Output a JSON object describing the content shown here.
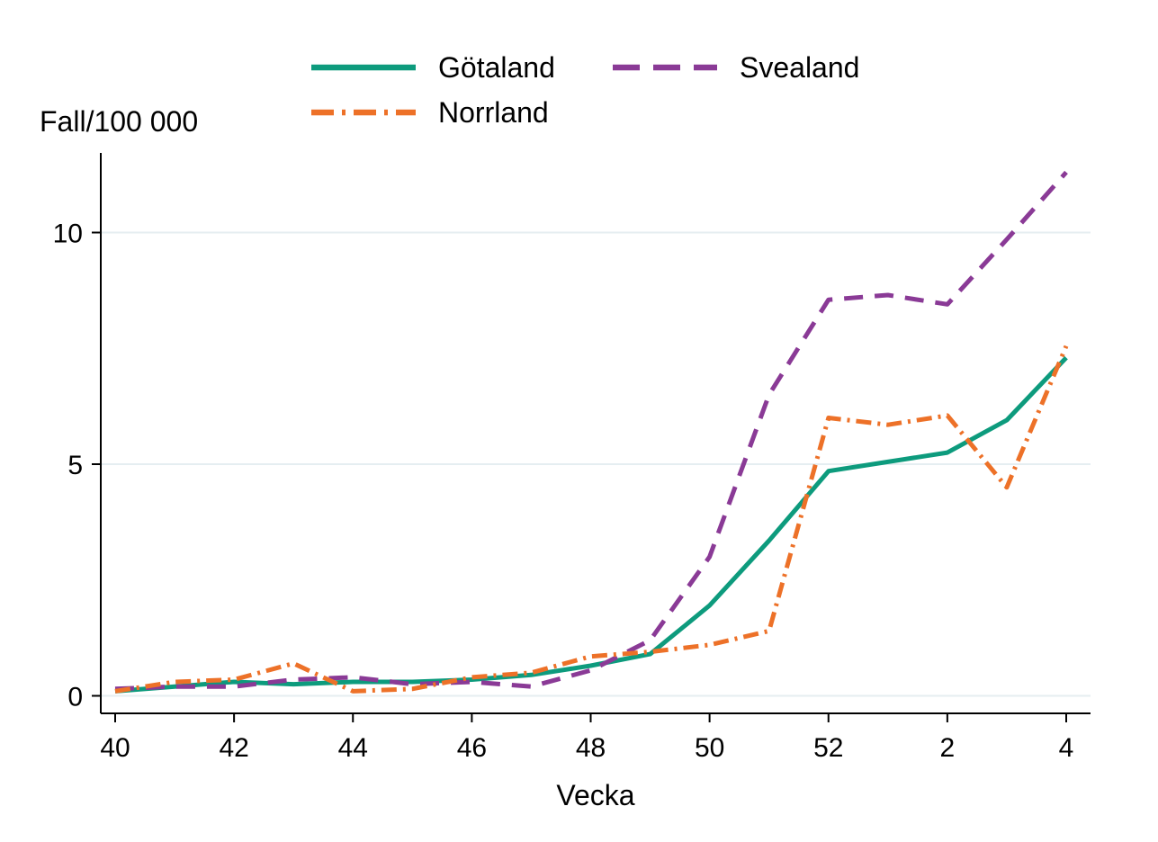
{
  "chart_data": {
    "type": "line",
    "title": "",
    "ylabel": "Fall/100 000",
    "xlabel": "Vecka",
    "categories": [
      "40",
      "41",
      "42",
      "43",
      "44",
      "45",
      "46",
      "47",
      "48",
      "49",
      "50",
      "51",
      "52",
      "1",
      "2",
      "3",
      "4"
    ],
    "x_tick_labels": [
      "40",
      "42",
      "44",
      "46",
      "48",
      "50",
      "52",
      "2",
      "4"
    ],
    "x_tick_indices": [
      0,
      2,
      4,
      6,
      8,
      10,
      12,
      14,
      16
    ],
    "yticks": [
      0,
      5,
      10
    ],
    "ylim": [
      0,
      11.7
    ],
    "grid": "horizontal-only",
    "legend_position": "top",
    "series": [
      {
        "name": "Götaland",
        "color": "#0d9b7d",
        "style": "solid",
        "values": [
          0.1,
          0.2,
          0.3,
          0.25,
          0.3,
          0.3,
          0.35,
          0.45,
          0.65,
          0.9,
          1.95,
          3.35,
          4.85,
          5.05,
          5.25,
          5.95,
          7.3
        ]
      },
      {
        "name": "Svealand",
        "color": "#8a3a96",
        "style": "dashed",
        "values": [
          0.15,
          0.2,
          0.2,
          0.35,
          0.4,
          0.25,
          0.3,
          0.2,
          0.55,
          1.2,
          3.0,
          6.5,
          8.55,
          8.65,
          8.45,
          9.85,
          11.3
        ]
      },
      {
        "name": "Norrland",
        "color": "#ed7128",
        "style": "dashdot",
        "values": [
          0.1,
          0.3,
          0.35,
          0.7,
          0.1,
          0.15,
          0.4,
          0.5,
          0.85,
          0.95,
          1.1,
          1.4,
          6.0,
          5.85,
          6.05,
          4.5,
          7.55
        ]
      }
    ]
  },
  "colors": {
    "background": "#ffffff",
    "grid": "#e5eef1",
    "axis": "#000000",
    "text": "#000000"
  }
}
